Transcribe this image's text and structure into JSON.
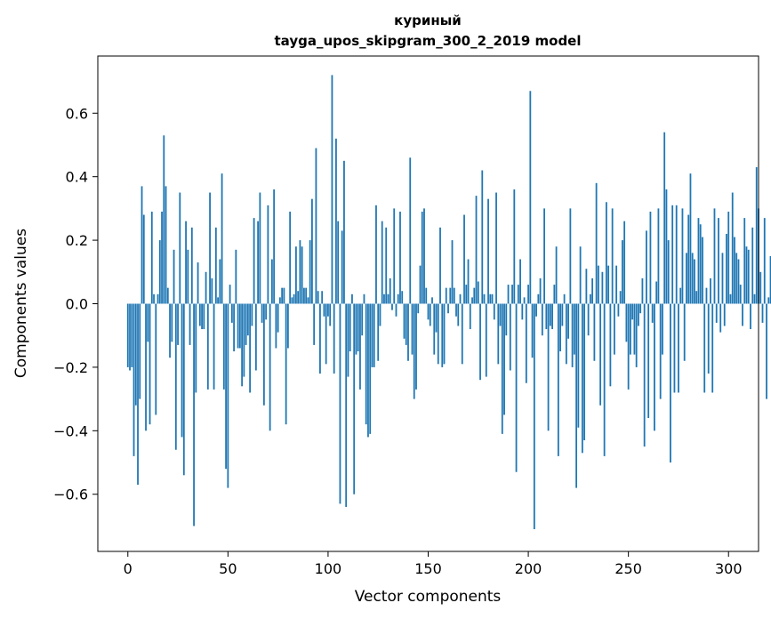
{
  "chart_data": {
    "type": "bar",
    "title": "куриный",
    "subtitle": "tayga_upos_skipgram_300_2_2019 model",
    "xlabel": "Vector components",
    "ylabel": "Components values",
    "xlim": [
      -15,
      315
    ],
    "ylim": [
      -0.78,
      0.78
    ],
    "x_ticks": [
      0,
      50,
      100,
      150,
      200,
      250,
      300
    ],
    "x_tick_labels": [
      "0",
      "50",
      "100",
      "150",
      "200",
      "250",
      "300"
    ],
    "y_ticks": [
      -0.6,
      -0.4,
      -0.2,
      0.0,
      0.2,
      0.4,
      0.6
    ],
    "y_tick_labels": [
      "−0.6",
      "−0.4",
      "−0.2",
      "0.0",
      "0.2",
      "0.4",
      "0.6"
    ],
    "grid": false,
    "bar_color": "#1f77b4",
    "values": [
      -0.2,
      -0.21,
      -0.2,
      -0.48,
      -0.32,
      -0.57,
      -0.3,
      0.37,
      0.28,
      -0.4,
      -0.12,
      -0.38,
      0.29,
      0.03,
      -0.35,
      0.03,
      0.2,
      0.29,
      0.53,
      0.37,
      0.05,
      -0.17,
      -0.12,
      0.17,
      -0.46,
      -0.13,
      0.35,
      -0.42,
      -0.54,
      0.26,
      0.17,
      -0.13,
      0.24,
      -0.7,
      -0.28,
      0.13,
      -0.07,
      -0.08,
      -0.08,
      0.1,
      -0.27,
      0.35,
      0.08,
      -0.27,
      0.24,
      0.02,
      0.14,
      0.41,
      -0.27,
      -0.52,
      -0.58,
      0.06,
      -0.06,
      -0.15,
      0.17,
      -0.14,
      -0.14,
      -0.26,
      -0.23,
      -0.13,
      -0.1,
      -0.28,
      -0.07,
      0.27,
      -0.21,
      0.26,
      0.35,
      -0.06,
      -0.32,
      -0.05,
      0.31,
      -0.4,
      0.14,
      0.36,
      -0.14,
      -0.09,
      0.02,
      0.05,
      0.05,
      -0.38,
      -0.14,
      0.29,
      0.02,
      0.03,
      0.18,
      0.04,
      0.2,
      0.18,
      0.05,
      0.05,
      0.02,
      0.2,
      0.33,
      -0.13,
      0.49,
      0.04,
      -0.22,
      0.04,
      -0.04,
      -0.19,
      -0.04,
      -0.07,
      0.72,
      -0.22,
      0.52,
      0.26,
      -0.63,
      0.23,
      0.45,
      -0.64,
      -0.23,
      -0.15,
      0.03,
      -0.6,
      -0.16,
      -0.15,
      -0.27,
      -0.1,
      0.03,
      -0.38,
      -0.42,
      -0.41,
      -0.2,
      -0.2,
      0.31,
      -0.18,
      -0.07,
      0.26,
      0.03,
      0.24,
      0.03,
      0.08,
      -0.02,
      0.3,
      -0.04,
      0.03,
      0.29,
      0.04,
      -0.11,
      -0.13,
      -0.18,
      0.46,
      -0.16,
      -0.3,
      -0.27,
      -0.03,
      0.12,
      0.29,
      0.3,
      0.05,
      -0.05,
      -0.07,
      0.02,
      -0.16,
      -0.09,
      -0.19,
      0.24,
      -0.2,
      -0.19,
      0.05,
      -0.03,
      0.05,
      0.2,
      0.05,
      -0.04,
      -0.07,
      0.03,
      -0.19,
      0.28,
      0.06,
      0.14,
      -0.08,
      0.02,
      0.05,
      0.34,
      0.07,
      -0.24,
      0.42,
      0.03,
      -0.23,
      0.33,
      0.03,
      0.03,
      -0.05,
      0.35,
      -0.19,
      -0.07,
      -0.41,
      -0.35,
      -0.1,
      0.06,
      -0.21,
      0.06,
      0.36,
      -0.53,
      0.06,
      0.14,
      -0.05,
      0.02,
      -0.25,
      0.06,
      0.67,
      -0.17,
      -0.71,
      -0.04,
      0.03,
      0.08,
      -0.1,
      0.3,
      -0.08,
      -0.4,
      -0.07,
      -0.08,
      0.06,
      0.18,
      -0.48,
      -0.15,
      -0.07,
      0.03,
      -0.19,
      -0.11,
      0.3,
      -0.2,
      -0.16,
      -0.58,
      -0.39,
      0.18,
      -0.47,
      -0.43,
      0.11,
      -0.1,
      0.03,
      0.08,
      -0.18,
      0.38,
      0.12,
      -0.32,
      0.1,
      -0.48,
      0.32,
      0.12,
      -0.26,
      0.3,
      -0.16,
      0.12,
      -0.04,
      0.04,
      0.2,
      0.26,
      -0.12,
      -0.27,
      -0.16,
      -0.05,
      -0.16,
      -0.2,
      -0.07,
      -0.03,
      0.08,
      -0.45,
      0.23,
      -0.36,
      0.29,
      -0.06,
      -0.4,
      0.07,
      0.3,
      -0.3,
      -0.16,
      0.54,
      0.36,
      0.2,
      -0.5,
      0.31,
      -0.28,
      0.31,
      -0.28,
      0.05,
      0.3,
      -0.18,
      0.16,
      0.28,
      0.41,
      0.16,
      0.14,
      0.04,
      0.27,
      0.25,
      0.21,
      -0.28,
      0.05,
      -0.22,
      0.08,
      -0.28,
      0.3,
      -0.06,
      0.27,
      -0.09,
      0.16,
      -0.07,
      0.22,
      0.29,
      0.03,
      0.35,
      0.21,
      0.16,
      0.14,
      0.06,
      -0.07,
      0.27,
      0.18,
      0.17,
      -0.08,
      0.24,
      0.03,
      0.43,
      0.3,
      0.1,
      -0.06,
      0.27,
      -0.3,
      0.02,
      0.15
    ]
  }
}
